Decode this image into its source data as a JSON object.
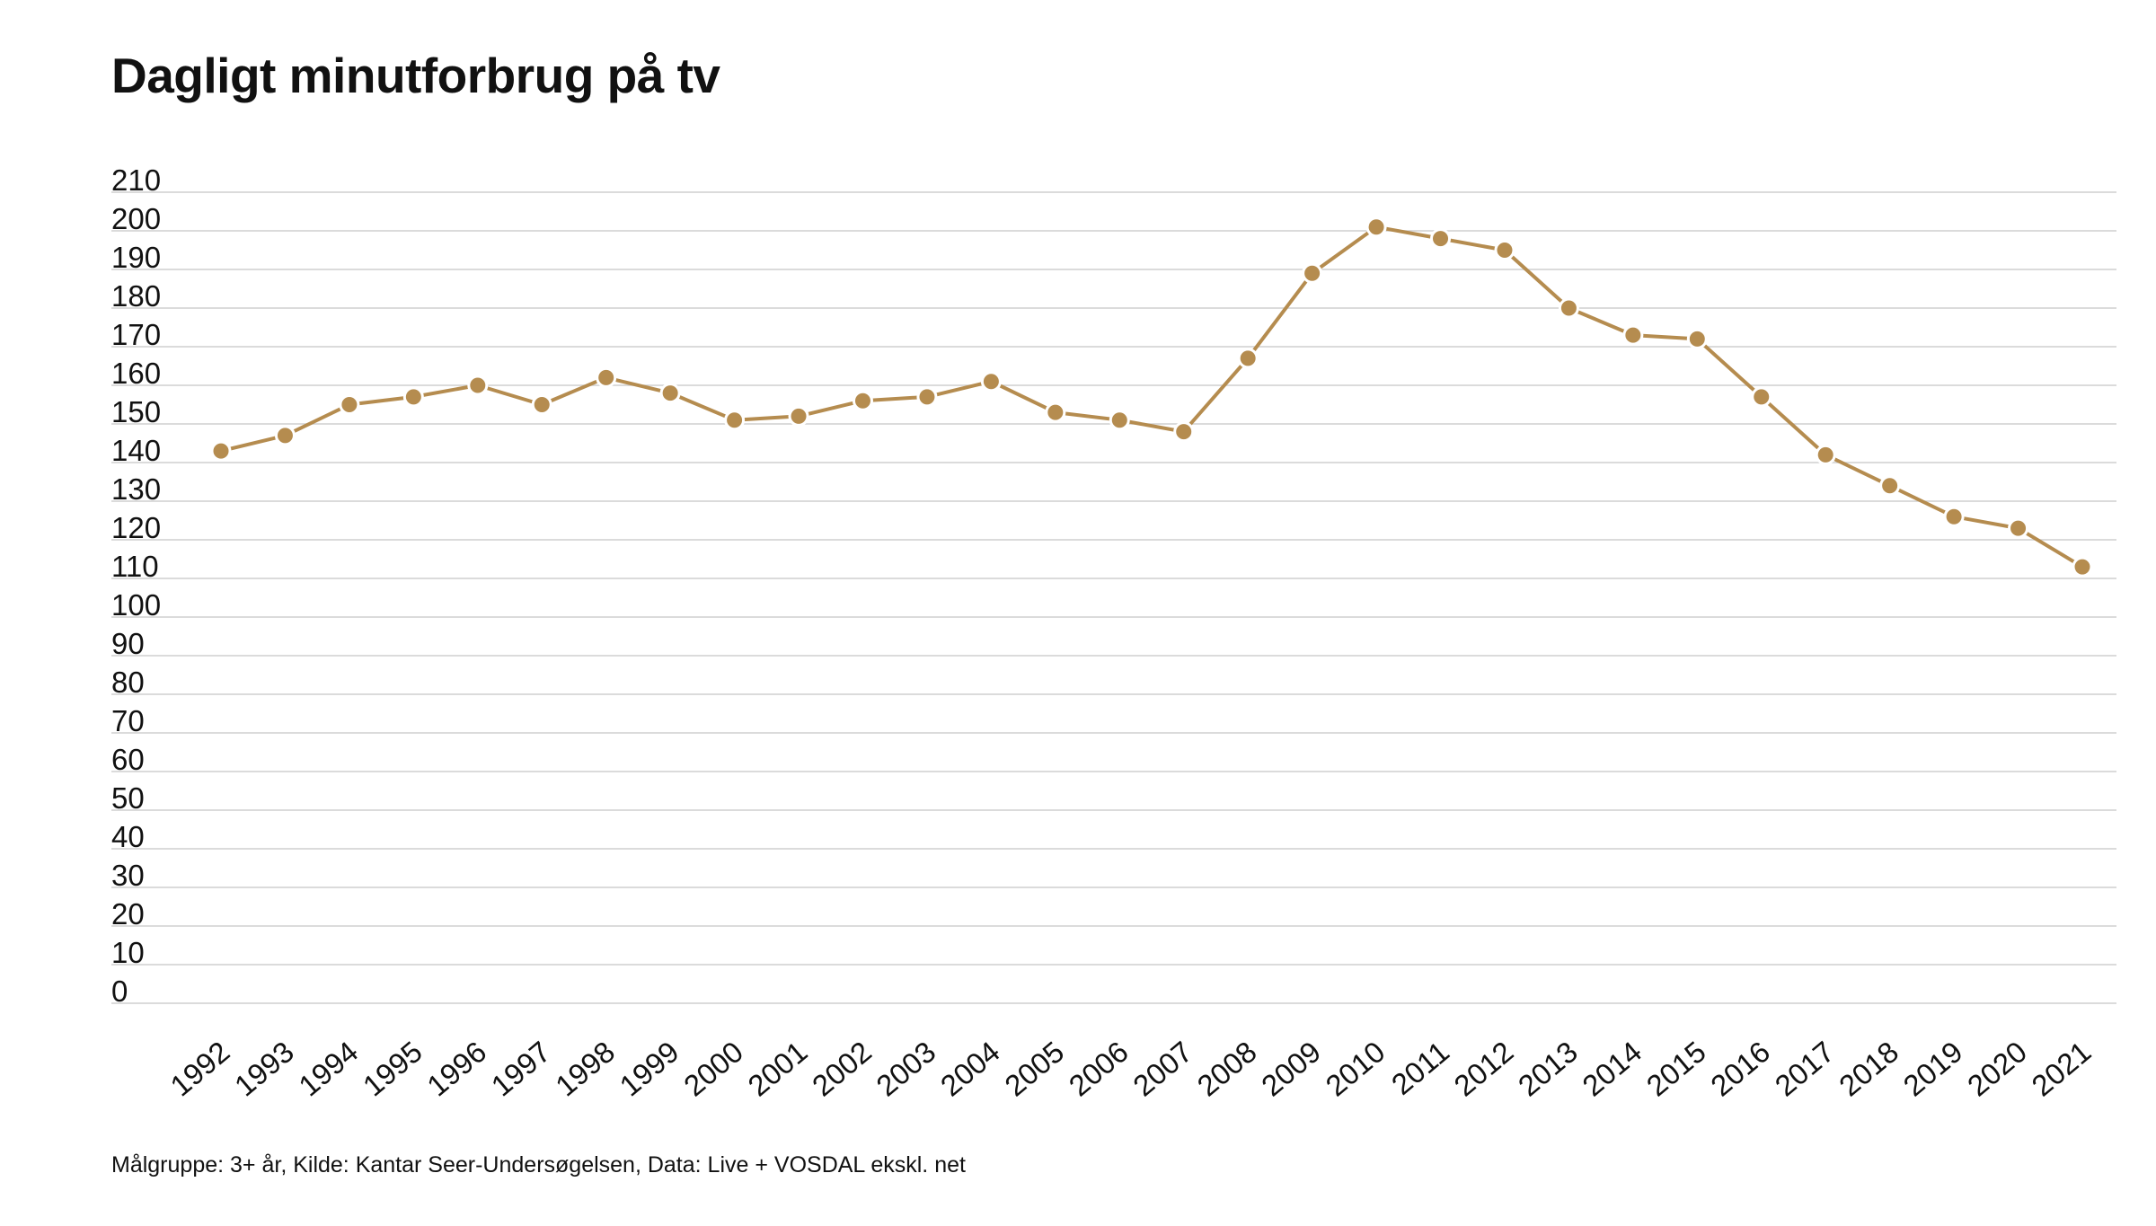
{
  "chart_data": {
    "type": "line",
    "title": "Dagligt minutforbrug på tv",
    "xlabel": "",
    "ylabel": "",
    "ylim": [
      0,
      210
    ],
    "y_ticks": [
      0,
      10,
      20,
      30,
      40,
      50,
      60,
      70,
      80,
      90,
      100,
      110,
      120,
      130,
      140,
      150,
      160,
      170,
      180,
      190,
      200,
      210
    ],
    "grid": true,
    "legend": "none",
    "categories": [
      "1992",
      "1993",
      "1994",
      "1995",
      "1996",
      "1997",
      "1998",
      "1999",
      "2000",
      "2001",
      "2002",
      "2003",
      "2004",
      "2005",
      "2006",
      "2007",
      "2008",
      "2009",
      "2010",
      "2011",
      "2012",
      "2013",
      "2014",
      "2015",
      "2016",
      "2017",
      "2018",
      "2019",
      "2020",
      "2021"
    ],
    "series": [
      {
        "values": [
          143,
          147,
          155,
          157,
          160,
          155,
          162,
          158,
          151,
          152,
          156,
          157,
          161,
          153,
          151,
          148,
          167,
          189,
          201,
          198,
          195,
          180,
          173,
          172,
          157,
          142,
          134,
          126,
          123,
          113
        ]
      }
    ],
    "colors": {
      "line": "#b58c4f",
      "marker": "#b58c4f",
      "marker_outline": "#ffffff",
      "grid": "#cfcfcf"
    },
    "source": "Målgruppe: 3+ år, Kilde: Kantar Seer-Undersøgelsen, Data: Live + VOSDAL ekskl. net"
  }
}
